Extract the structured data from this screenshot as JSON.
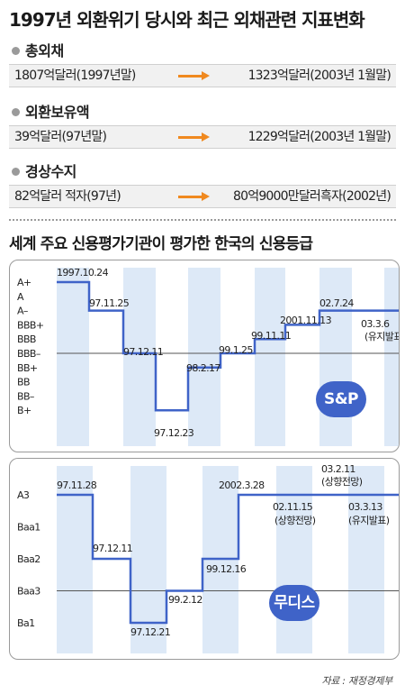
{
  "header": {
    "title": "1997년 외환위기 당시와 최근 외채관련 지표변화"
  },
  "indicators": [
    {
      "label": "총외채",
      "from": "1807억달러(1997년말)",
      "to": "1323억달러(2003년 1월말)"
    },
    {
      "label": "외환보유액",
      "from": "39억달러(97년말)",
      "to": "1229억달러(2003년 1월말)"
    },
    {
      "label": "경상수지",
      "from": "82억달러 적자(97년)",
      "to": "80억9000만달러흑자(2002년)"
    }
  ],
  "colors": {
    "line": "#3f63c8",
    "band": "#dde9f7",
    "arrow": "#f0891f",
    "badge": "#3f63c8"
  },
  "chart_data": [
    {
      "type": "line",
      "step": true,
      "title": "세계 주요 신용평가기관이 평가한 한국의 신용등급",
      "agency": "S&P",
      "y_categories": [
        "A+",
        "A",
        "A–",
        "BBB+",
        "BBB",
        "BBB–",
        "BB+",
        "BB",
        "BB–",
        "B+"
      ],
      "reference_line": "BBB–",
      "points": [
        {
          "date": "1997.10.24",
          "rating": "A+"
        },
        {
          "date": "97.11.25",
          "rating": "A–"
        },
        {
          "date": "97.12.11",
          "rating": "BBB–"
        },
        {
          "date": "97.12.23",
          "rating": "B+"
        },
        {
          "date": "98.2.17",
          "rating": "BB+"
        },
        {
          "date": "99.1.25",
          "rating": "BBB–"
        },
        {
          "date": "99.11.11",
          "rating": "BBB"
        },
        {
          "date": "2001.11.13",
          "rating": "BBB+"
        },
        {
          "date": "02.7.24",
          "rating": "A–"
        },
        {
          "date": "03.3.6",
          "rating": "A–",
          "note": "(유지발표)"
        }
      ]
    },
    {
      "type": "line",
      "step": true,
      "agency": "무디스",
      "y_categories": [
        "A3",
        "Baa1",
        "Baa2",
        "Baa3",
        "Ba1"
      ],
      "reference_line": "Baa3",
      "points": [
        {
          "date": "97.11.28",
          "rating": "A3"
        },
        {
          "date": "97.12.11",
          "rating": "Baa2"
        },
        {
          "date": "97.12.21",
          "rating": "Ba1"
        },
        {
          "date": "99.2.12",
          "rating": "Baa3"
        },
        {
          "date": "99.12.16",
          "rating": "Baa2"
        },
        {
          "date": "2002.3.28",
          "rating": "A3"
        },
        {
          "date": "02.11.15",
          "rating": "A3",
          "note": "(상향전망)"
        },
        {
          "date": "03.2.11",
          "rating": "A3",
          "note": "(상향전망)"
        },
        {
          "date": "03.3.13",
          "rating": "A3",
          "note": "(유지발표)"
        }
      ]
    }
  ],
  "footer": {
    "source": "자료 : 재정경제부"
  }
}
